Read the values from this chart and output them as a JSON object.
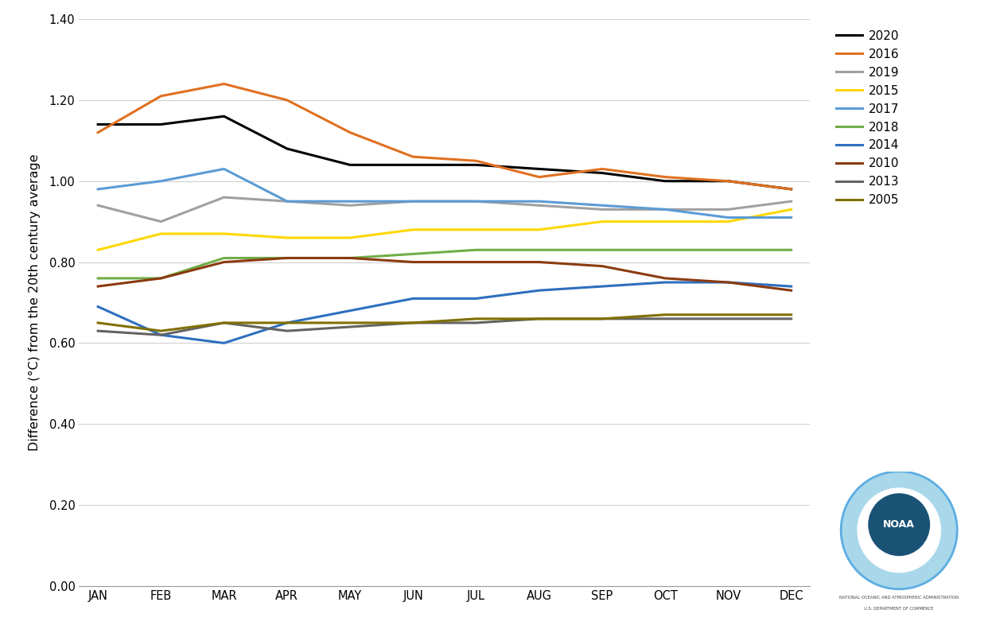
{
  "months": [
    "JAN",
    "FEB",
    "MAR",
    "APR",
    "MAY",
    "JUN",
    "JUL",
    "AUG",
    "SEP",
    "OCT",
    "NOV",
    "DEC"
  ],
  "series": {
    "2020": {
      "color": "#000000",
      "linewidth": 2.2,
      "values": [
        1.14,
        1.14,
        1.16,
        1.08,
        1.04,
        1.04,
        1.04,
        1.03,
        1.02,
        1.0,
        1.0,
        0.98
      ]
    },
    "2016": {
      "color": "#E07020",
      "linewidth": 2.2,
      "values": [
        1.12,
        1.21,
        1.24,
        1.2,
        1.12,
        1.06,
        1.05,
        1.01,
        1.03,
        1.01,
        1.0,
        0.98
      ]
    },
    "2019": {
      "color": "#A0A0A0",
      "linewidth": 2.2,
      "values": [
        0.94,
        0.9,
        0.96,
        0.95,
        0.94,
        0.95,
        0.95,
        0.94,
        0.93,
        0.93,
        0.93,
        0.95
      ]
    },
    "2015": {
      "color": "#FFD700",
      "linewidth": 2.2,
      "values": [
        0.83,
        0.87,
        0.87,
        0.86,
        0.86,
        0.88,
        0.88,
        0.88,
        0.9,
        0.9,
        0.9,
        0.93
      ]
    },
    "2017": {
      "color": "#5B9BD5",
      "linewidth": 2.2,
      "values": [
        0.98,
        1.0,
        1.03,
        0.95,
        0.95,
        0.95,
        0.95,
        0.95,
        0.94,
        0.93,
        0.91,
        0.91
      ]
    },
    "2018": {
      "color": "#70AD47",
      "linewidth": 2.2,
      "values": [
        0.76,
        0.76,
        0.81,
        0.81,
        0.81,
        0.82,
        0.83,
        0.83,
        0.83,
        0.83,
        0.83,
        0.83
      ]
    },
    "2014": {
      "color": "#2E6FBF",
      "linewidth": 2.2,
      "values": [
        0.69,
        0.62,
        0.6,
        0.65,
        0.68,
        0.71,
        0.71,
        0.73,
        0.74,
        0.75,
        0.75,
        0.74
      ]
    },
    "2010": {
      "color": "#8B3A10",
      "linewidth": 2.2,
      "values": [
        0.74,
        0.76,
        0.8,
        0.81,
        0.81,
        0.8,
        0.8,
        0.8,
        0.79,
        0.76,
        0.75,
        0.73
      ]
    },
    "2013": {
      "color": "#636363",
      "linewidth": 2.2,
      "values": [
        0.63,
        0.62,
        0.65,
        0.63,
        0.64,
        0.65,
        0.65,
        0.66,
        0.66,
        0.66,
        0.66,
        0.66
      ]
    },
    "2005": {
      "color": "#807000",
      "linewidth": 2.2,
      "values": [
        0.65,
        0.63,
        0.65,
        0.65,
        0.65,
        0.65,
        0.66,
        0.66,
        0.66,
        0.67,
        0.67,
        0.67
      ]
    }
  },
  "legend_order": [
    "2020",
    "2016",
    "2019",
    "2015",
    "2017",
    "2018",
    "2014",
    "2010",
    "2013",
    "2005"
  ],
  "ylabel": "Difference (°C) from the 20th century average",
  "ylim": [
    0.0,
    1.4
  ],
  "yticks": [
    0.0,
    0.2,
    0.4,
    0.6,
    0.8,
    1.0,
    1.2,
    1.4
  ],
  "background_color": "#FFFFFF",
  "grid_color": "#D0D0D0"
}
